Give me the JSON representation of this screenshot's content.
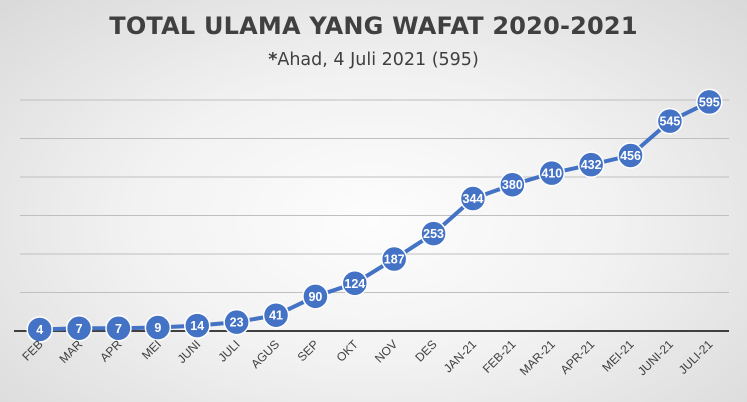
{
  "chart_data": {
    "type": "line",
    "title": "TOTAL ULAMA YANG WAFAT 2020-2021",
    "subtitle_star": "*",
    "subtitle": "Ahad, 4 Juli 2021 (595)",
    "xlabel": "",
    "ylabel": "",
    "ylim": [
      0,
      600
    ],
    "grid": true,
    "categories": [
      "FEB",
      "MAR",
      "APR",
      "MEI",
      "JUNI",
      "JULI",
      "AGUS",
      "SEP",
      "OKT",
      "NOV",
      "DES",
      "JAN-21",
      "FEB-21",
      "MAR-21",
      "APR-21",
      "MEI-21",
      "JUNI-21",
      "JULI-21"
    ],
    "values": [
      4,
      7,
      7,
      9,
      14,
      23,
      41,
      90,
      124,
      187,
      253,
      344,
      380,
      410,
      432,
      456,
      545,
      595
    ],
    "line_color": "#4472c4",
    "marker_color": "#4472c4",
    "label_color": "#ffffff",
    "axis_color": "#404040",
    "gridline_color": "#bfbfbf"
  }
}
